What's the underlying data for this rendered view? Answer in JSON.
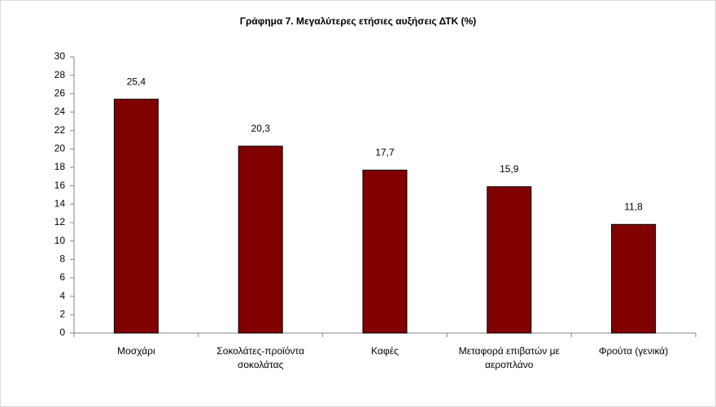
{
  "chart_data": {
    "type": "bar",
    "title": "Γράφημα 7. Μεγαλύτερες ετήσιες αυξήσεις ΔΤΚ (%)",
    "categories": [
      "Μοσχάρι",
      "Σοκολάτες-προϊόντα σοκολάτας",
      "Καφές",
      "Μεταφορά επιβατών με αεροπλάνο",
      "Φρούτα (γενικά)"
    ],
    "values": [
      25.4,
      20.3,
      17.7,
      15.9,
      11.8
    ],
    "value_labels": [
      "25,4",
      "20,3",
      "17,7",
      "15,9",
      "11,8"
    ],
    "color": "#800000",
    "ylim": [
      0,
      30
    ],
    "yticks": [
      0,
      2,
      4,
      6,
      8,
      10,
      12,
      14,
      16,
      18,
      20,
      22,
      24,
      26,
      28,
      30
    ],
    "grid": false
  }
}
